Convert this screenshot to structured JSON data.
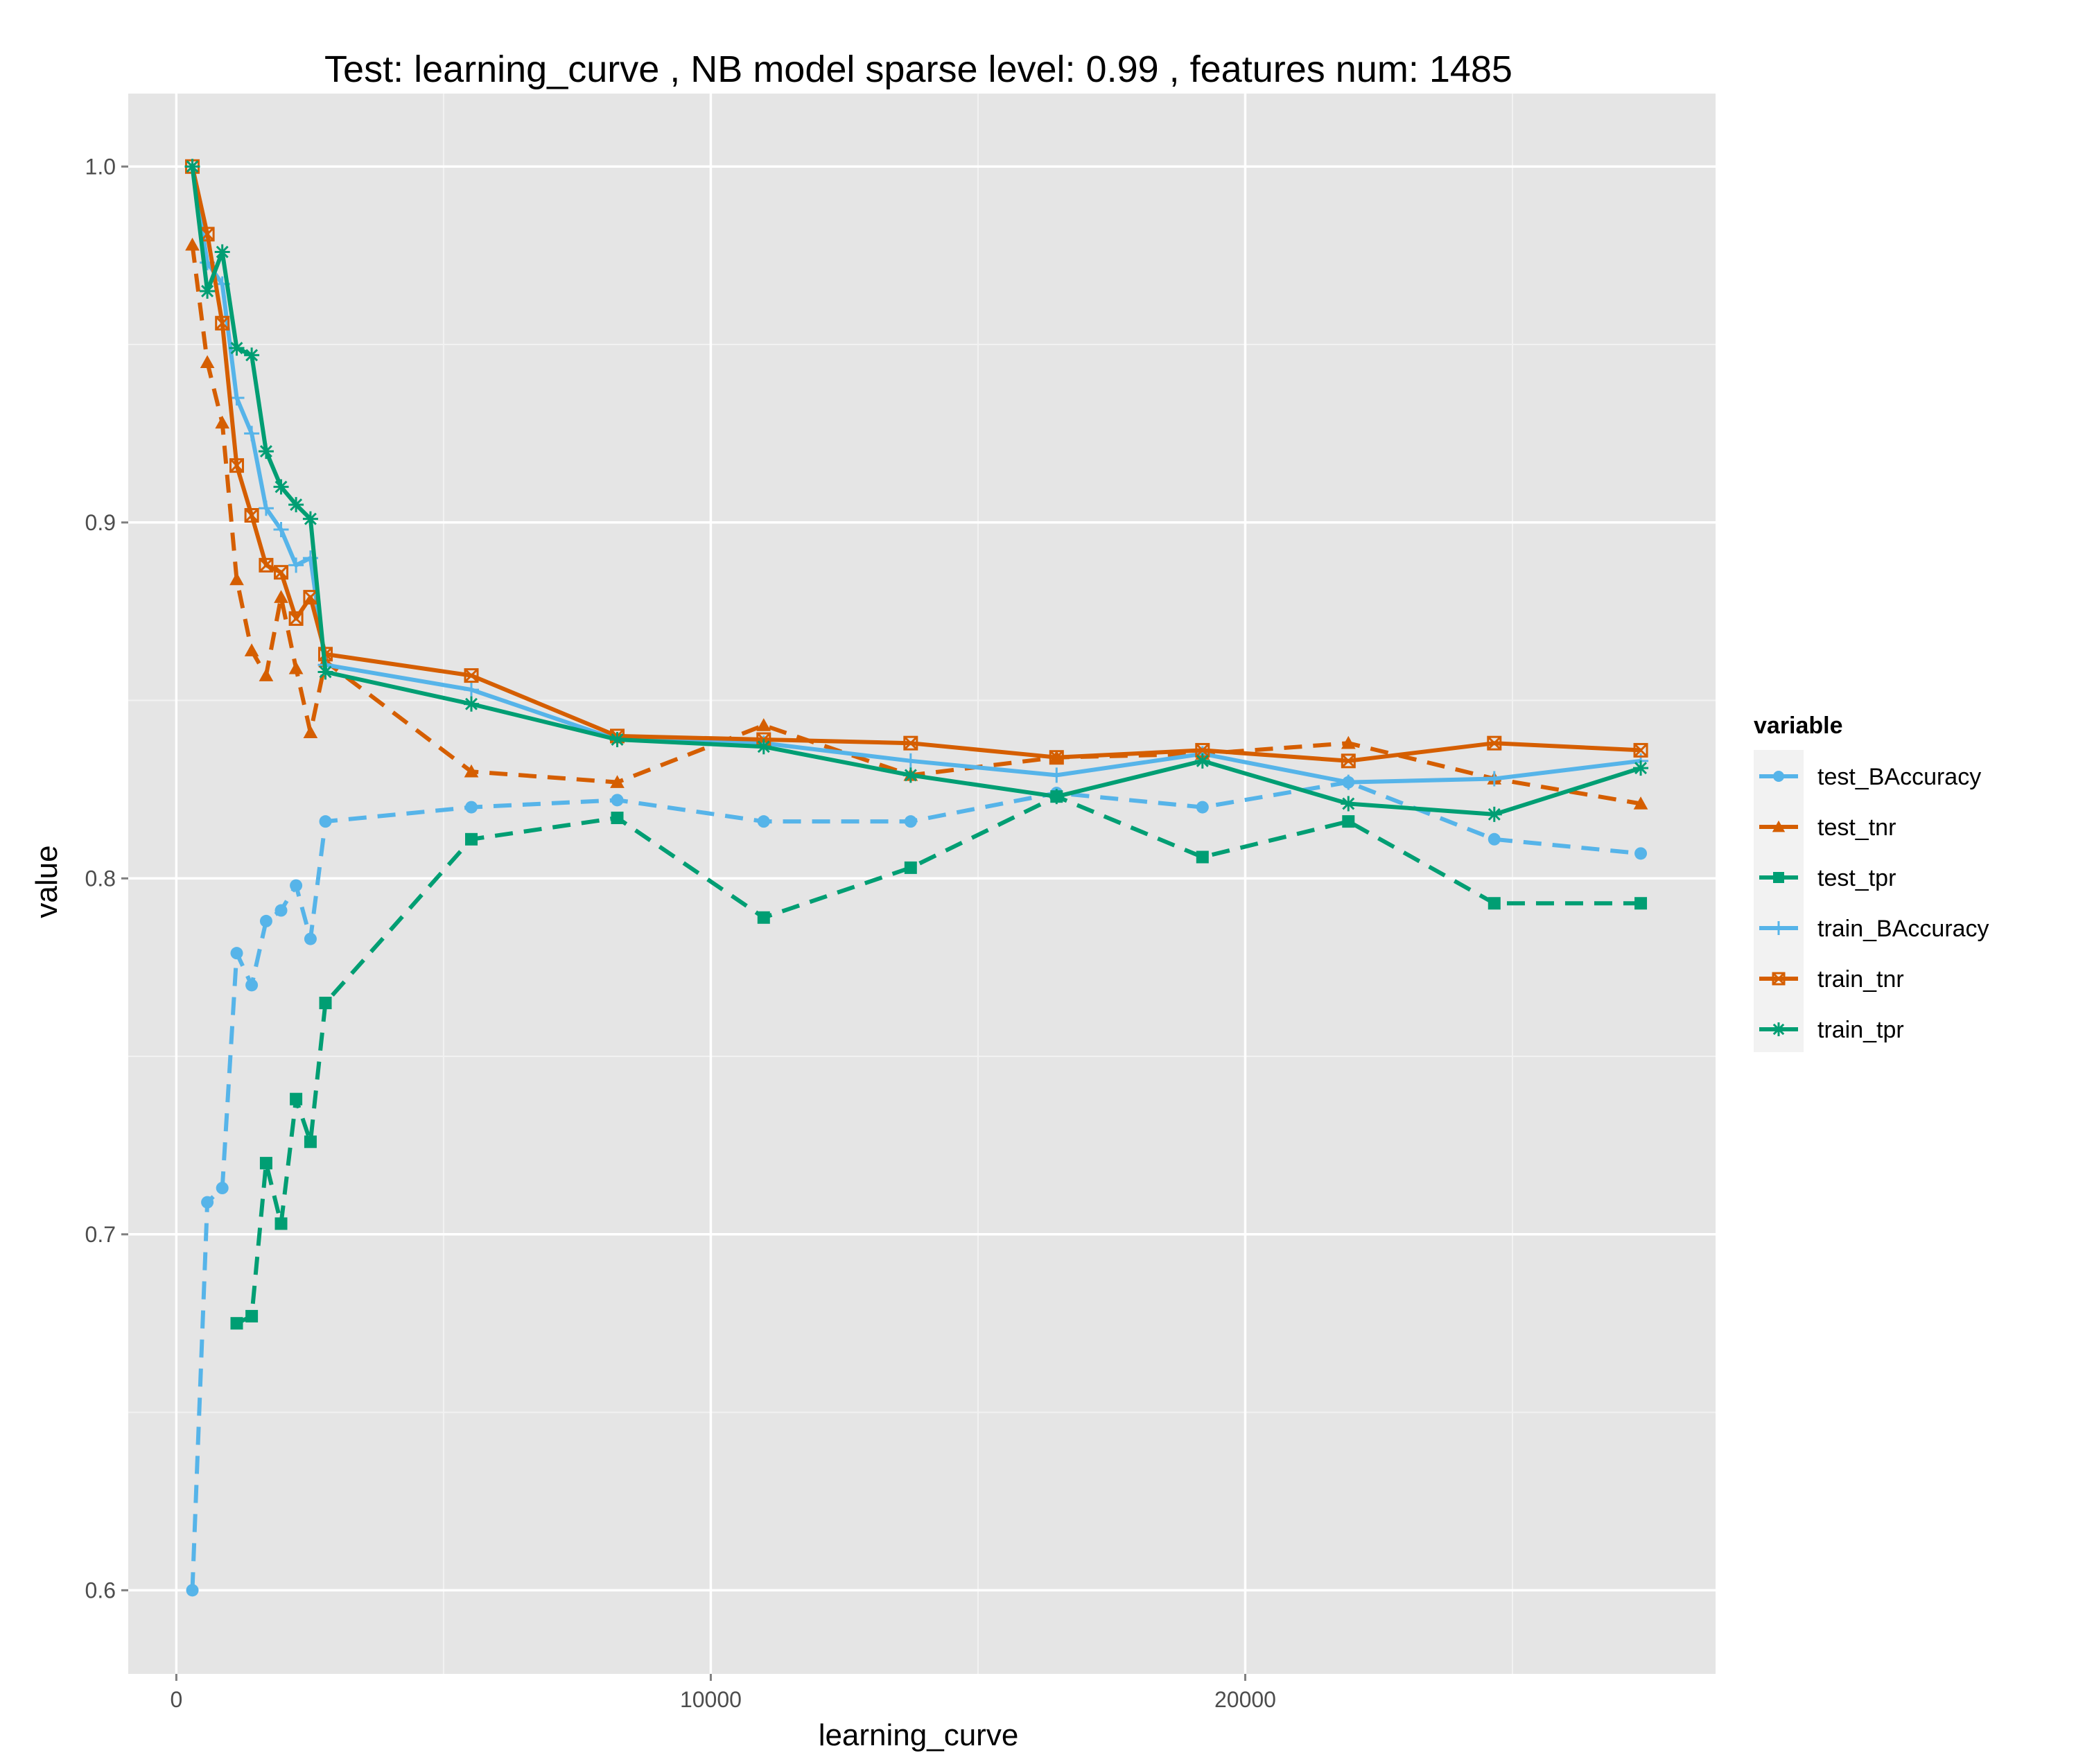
{
  "chart_data": {
    "type": "line",
    "title": "Test:  learning_curve ,  NB model sparse level: 0.99 , features num: 1485",
    "xlabel": "learning_curve",
    "ylabel": "value",
    "xlim": [
      -900,
      28800
    ],
    "ylim": [
      0.5765,
      1.0205
    ],
    "x_ticks": [
      0,
      10000,
      20000
    ],
    "x_tick_labels": [
      "0",
      "10000",
      "20000"
    ],
    "y_ticks": [
      0.6,
      0.7,
      0.8,
      0.9,
      1.0
    ],
    "y_tick_labels": [
      "0.6",
      "0.7",
      "0.8",
      "0.9",
      "1.0"
    ],
    "grid": true,
    "legend": {
      "title": "variable",
      "position": "right"
    },
    "series": [
      {
        "name": "test_BAccuracy",
        "color": "#56B4E9",
        "dash": "dashed",
        "marker": "circle",
        "x": [
          300,
          580,
          860,
          1130,
          1410,
          1680,
          1960,
          2240,
          2510,
          2790,
          5520,
          8250,
          10990,
          13740,
          16470,
          19200,
          21930,
          24660,
          27400
        ],
        "y": [
          0.6,
          0.709,
          0.713,
          0.779,
          0.77,
          0.788,
          0.791,
          0.798,
          0.783,
          0.816,
          0.82,
          0.822,
          0.816,
          0.816,
          0.824,
          0.82,
          0.827,
          0.811,
          0.807
        ]
      },
      {
        "name": "test_tnr",
        "color": "#D55E00",
        "dash": "dashed",
        "marker": "triangle",
        "x": [
          300,
          580,
          860,
          1130,
          1410,
          1680,
          1960,
          2240,
          2510,
          2790,
          5520,
          8250,
          10990,
          13740,
          16470,
          19200,
          21930,
          24660,
          27400
        ],
        "y": [
          0.978,
          0.945,
          0.928,
          0.884,
          0.864,
          0.857,
          0.879,
          0.859,
          0.841,
          0.861,
          0.83,
          0.827,
          0.843,
          0.829,
          0.834,
          0.835,
          0.838,
          0.828,
          0.821
        ]
      },
      {
        "name": "test_tpr",
        "color": "#009E73",
        "dash": "dashed",
        "marker": "square",
        "x": [
          1130,
          1410,
          1680,
          1960,
          2240,
          2510,
          2790,
          5520,
          8250,
          10990,
          13740,
          16470,
          19200,
          21930,
          24660,
          27400
        ],
        "y": [
          0.675,
          0.677,
          0.72,
          0.703,
          0.738,
          0.726,
          0.765,
          0.811,
          0.817,
          0.789,
          0.803,
          0.823,
          0.806,
          0.816,
          0.793,
          0.793
        ]
      },
      {
        "name": "train_BAccuracy",
        "color": "#56B4E9",
        "dash": "solid",
        "marker": "plus",
        "x": [
          300,
          580,
          860,
          1130,
          1410,
          1680,
          1960,
          2240,
          2510,
          2790,
          5520,
          8250,
          10990,
          13740,
          16470,
          19200,
          21930,
          24660,
          27400
        ],
        "y": [
          1.0,
          0.973,
          0.967,
          0.935,
          0.925,
          0.904,
          0.898,
          0.888,
          0.89,
          0.86,
          0.853,
          0.839,
          0.838,
          0.833,
          0.829,
          0.835,
          0.827,
          0.828,
          0.833
        ]
      },
      {
        "name": "train_tnr",
        "color": "#D55E00",
        "dash": "solid",
        "marker": "square-cross",
        "x": [
          300,
          580,
          860,
          1130,
          1410,
          1680,
          1960,
          2240,
          2510,
          2790,
          5520,
          8250,
          10990,
          13740,
          16470,
          19200,
          21930,
          24660,
          27400
        ],
        "y": [
          1.0,
          0.981,
          0.956,
          0.916,
          0.902,
          0.888,
          0.886,
          0.873,
          0.879,
          0.863,
          0.857,
          0.84,
          0.839,
          0.838,
          0.834,
          0.836,
          0.833,
          0.838,
          0.836
        ]
      },
      {
        "name": "train_tpr",
        "color": "#009E73",
        "dash": "solid",
        "marker": "asterisk",
        "x": [
          300,
          580,
          860,
          1130,
          1410,
          1680,
          1960,
          2240,
          2510,
          2790,
          5520,
          8250,
          10990,
          13740,
          16470,
          19200,
          21930,
          24660,
          27400
        ],
        "y": [
          1.0,
          0.965,
          0.976,
          0.949,
          0.947,
          0.92,
          0.91,
          0.905,
          0.901,
          0.858,
          0.849,
          0.839,
          0.837,
          0.829,
          0.823,
          0.833,
          0.821,
          0.818,
          0.831
        ]
      }
    ]
  }
}
